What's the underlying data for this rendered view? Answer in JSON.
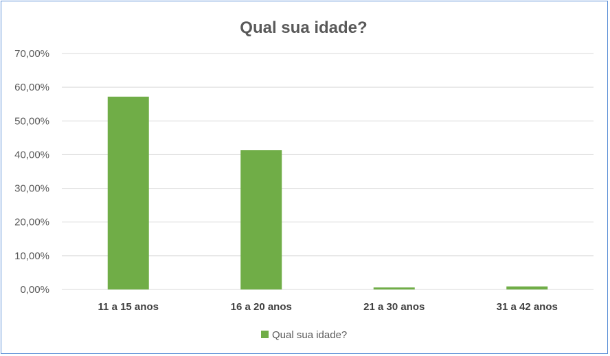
{
  "chart_data": {
    "type": "bar",
    "title": "Qual sua idade?",
    "categories": [
      "11 a 15 anos",
      "16 a 20 anos",
      "21 a 30 anos",
      "31 a 42 anos"
    ],
    "series": [
      {
        "name": "Qual sua idade?",
        "values": [
          0.572,
          0.413,
          0.006,
          0.009
        ]
      }
    ],
    "ylim": [
      0,
      0.7
    ],
    "yticks": [
      0,
      0.1,
      0.2,
      0.3,
      0.4,
      0.5,
      0.6,
      0.7
    ],
    "ytick_labels": [
      "0,00%",
      "10,00%",
      "20,00%",
      "30,00%",
      "40,00%",
      "50,00%",
      "60,00%",
      "70,00%"
    ],
    "grid": true,
    "legend_position": "bottom",
    "bar_color": "#70ad47",
    "grid_color": "#d9d9d9"
  }
}
